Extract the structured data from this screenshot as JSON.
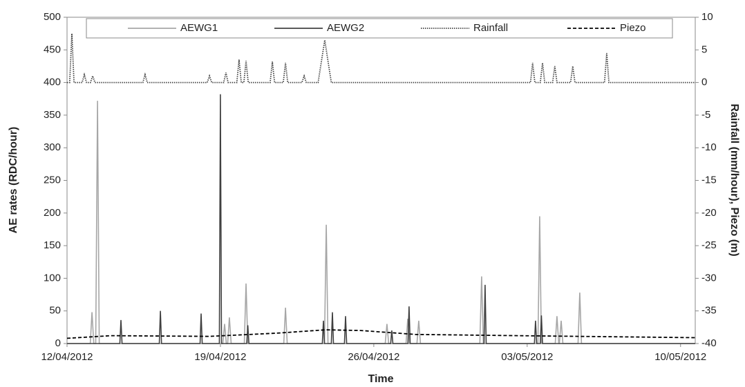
{
  "chart_data": {
    "type": "line",
    "xlabel": "Time",
    "ylabel": "AE rates (RDC/hour)",
    "y2label": "Rainfall (mm/hour), Piezo (m)",
    "xlim": [
      0,
      28.67
    ],
    "xticks": [
      {
        "value": 0,
        "label": "12/04/2012"
      },
      {
        "value": 7,
        "label": "19/04/2012"
      },
      {
        "value": 14,
        "label": "26/04/2012"
      },
      {
        "value": 21,
        "label": "03/05/2012"
      },
      {
        "value": 28,
        "label": "10/05/2012"
      }
    ],
    "ylim": [
      0,
      500
    ],
    "yticks": [
      0,
      50,
      100,
      150,
      200,
      250,
      300,
      350,
      400,
      450,
      500
    ],
    "y2lim": [
      -40,
      10
    ],
    "y2ticks": [
      10,
      5,
      0,
      -5,
      -10,
      -15,
      -20,
      -25,
      -30,
      -35,
      -40
    ],
    "legend": "top",
    "series": [
      {
        "name": "AEWG1",
        "color": "#a6a6a6",
        "dash": "solid",
        "x": [
          0,
          1.06,
          1.14,
          1.22,
          1.31,
          1.39,
          1.47,
          7.11,
          7.19,
          7.27,
          7.33,
          7.41,
          7.49,
          8.09,
          8.17,
          8.25,
          9.89,
          9.97,
          10.05,
          11.75,
          11.83,
          11.91,
          14.52,
          14.6,
          14.68,
          15.47,
          15.55,
          15.63,
          15.97,
          16.05,
          16.13,
          18.84,
          18.92,
          19.0,
          21.49,
          21.57,
          21.65,
          22.28,
          22.36,
          22.44,
          22.47,
          22.55,
          22.63,
          23.32,
          23.4,
          23.48,
          28.67
        ],
        "values": [
          0,
          0,
          48,
          0,
          0,
          372,
          0,
          0,
          30,
          0,
          0,
          40,
          0,
          0,
          92,
          0,
          0,
          55,
          0,
          0,
          182,
          0,
          0,
          30,
          0,
          0,
          38,
          0,
          0,
          35,
          0,
          0,
          103,
          0,
          0,
          195,
          0,
          0,
          42,
          0,
          0,
          35,
          0,
          0,
          78,
          0,
          0
        ]
      },
      {
        "name": "AEWG2",
        "color": "#404040",
        "dash": "solid",
        "x": [
          0,
          2.41,
          2.46,
          2.51,
          4.21,
          4.26,
          4.31,
          6.07,
          6.12,
          6.17,
          6.95,
          7.0,
          7.05,
          8.2,
          8.25,
          8.3,
          11.65,
          11.7,
          11.75,
          12.06,
          12.11,
          12.16,
          12.66,
          12.71,
          12.76,
          14.77,
          14.82,
          14.87,
          15.56,
          15.61,
          15.66,
          19.03,
          19.08,
          19.13,
          21.33,
          21.38,
          21.43,
          21.6,
          21.65,
          21.7,
          28.67
        ],
        "values": [
          0,
          0,
          36,
          0,
          0,
          50,
          0,
          0,
          46,
          0,
          0,
          382,
          0,
          0,
          28,
          0,
          0,
          35,
          0,
          0,
          48,
          0,
          0,
          42,
          0,
          0,
          20,
          0,
          0,
          57,
          0,
          0,
          90,
          0,
          0,
          35,
          0,
          0,
          43,
          0,
          0
        ]
      },
      {
        "name": "Rainfall",
        "color": "#404040",
        "dash": "dotted",
        "axis": "y2",
        "x": [
          0,
          0.12,
          0.22,
          0.32,
          0.69,
          0.79,
          0.89,
          1.07,
          1.17,
          1.27,
          3.46,
          3.56,
          3.66,
          6.4,
          6.5,
          6.6,
          7.15,
          7.25,
          7.35,
          7.75,
          7.85,
          7.95,
          8.07,
          8.17,
          8.27,
          9.27,
          9.37,
          9.47,
          9.87,
          9.97,
          10.07,
          10.72,
          10.82,
          10.92,
          11.46,
          11.76,
          12.06,
          21.15,
          21.25,
          21.35,
          21.6,
          21.7,
          21.8,
          22.16,
          22.26,
          22.36,
          22.98,
          23.08,
          23.18,
          24.53,
          24.63,
          24.73,
          28.67
        ],
        "values": [
          0,
          0,
          7.5,
          0,
          0,
          1.2,
          0,
          0,
          1,
          0,
          0,
          1.2,
          0,
          0,
          1,
          0,
          0,
          1.5,
          0,
          0,
          3.5,
          0,
          0,
          3.3,
          0,
          0,
          3.2,
          0,
          0,
          3,
          0,
          0,
          1,
          0,
          0,
          6.5,
          0,
          0,
          3,
          0,
          0,
          3,
          0,
          0,
          2.5,
          0,
          0,
          2.5,
          0,
          0,
          4.5,
          0,
          0
        ]
      },
      {
        "name": "Piezo",
        "color": "#000000",
        "dash": "dashed",
        "axis": "y2",
        "x": [
          0,
          2,
          6.5,
          9.6,
          11.8,
          13.4,
          15.9,
          20.6,
          28.67
        ],
        "values": [
          -39.2,
          -38.8,
          -38.9,
          -38.4,
          -37.9,
          -38.0,
          -38.6,
          -38.8,
          -39.1
        ]
      }
    ]
  }
}
